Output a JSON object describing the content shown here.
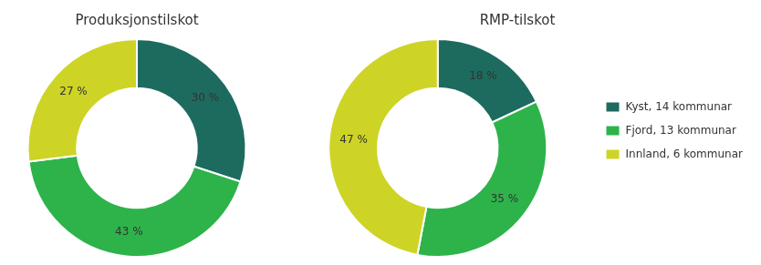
{
  "chart_data": [
    {
      "type": "doughnut",
      "title": "Produksjonstilskot",
      "categories": [
        "Kyst, 14 kommunar",
        "Fjord, 13 kommunar",
        "Innland, 6 kommunar"
      ],
      "values": [
        30,
        43,
        27
      ],
      "value_labels": [
        "30 %",
        "43 %",
        "27 %"
      ],
      "colors": [
        "#1d6b5e",
        "#2db34a",
        "#cdd425"
      ],
      "data_labels": true
    },
    {
      "type": "doughnut",
      "title": "RMP-tilskot",
      "categories": [
        "Kyst, 14 kommunar",
        "Fjord, 13 kommunar",
        "Innland, 6 kommunar"
      ],
      "values": [
        18,
        35,
        47
      ],
      "value_labels": [
        "18 %",
        "35 %",
        "47 %"
      ],
      "colors": [
        "#1d6b5e",
        "#2db34a",
        "#cdd425"
      ],
      "data_labels": true,
      "legend": "right"
    }
  ]
}
